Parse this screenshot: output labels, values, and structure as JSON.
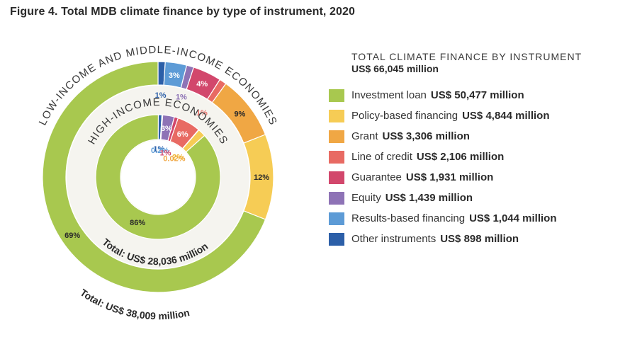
{
  "figure_title": "Figure 4.  Total MDB climate finance by type of instrument, 2020",
  "chart_data": {
    "type": "donut",
    "legend": {
      "heading": "TOTAL CLIMATE FINANCE BY INSTRUMENT",
      "total": "US$ 66,045 million",
      "items": [
        {
          "label": "Investment loan",
          "value": "US$ 50,477 million",
          "color": "#a8c84f"
        },
        {
          "label": "Policy-based financing",
          "value": "US$ 4,844 million",
          "color": "#f6cc55"
        },
        {
          "label": "Grant",
          "value": "US$ 3,306 million",
          "color": "#f0a744"
        },
        {
          "label": "Line of credit",
          "value": "US$ 2,106 million",
          "color": "#e86a63"
        },
        {
          "label": "Guarantee",
          "value": "US$ 1,931 million",
          "color": "#d2476c"
        },
        {
          "label": "Equity",
          "value": "US$ 1,439 million",
          "color": "#8e73b6"
        },
        {
          "label": "Results-based financing",
          "value": "US$ 1,044 million",
          "color": "#5d9bd6"
        },
        {
          "label": "Other instruments",
          "value": "US$ 898 million",
          "color": "#2c5fa8"
        }
      ]
    },
    "rings": [
      {
        "name": "LOW-INCOME AND MIDDLE-INCOME ECONOMIES",
        "total_label": "Total: US$ 38,009 million",
        "segments": [
          {
            "instrument": "Investment loan",
            "value": 69,
            "label": "69%",
            "label_color": "#2a2a2a"
          },
          {
            "instrument": "Policy-based financing",
            "value": 12,
            "label": "12%",
            "label_color": "#2a2a2a"
          },
          {
            "instrument": "Grant",
            "value": 9,
            "label": "9%",
            "label_color": "#2a2a2a"
          },
          {
            "instrument": "Line of credit",
            "value": 1,
            "label": "1%",
            "label_color": "#e86a63"
          },
          {
            "instrument": "Guarantee",
            "value": 4,
            "label": "4%",
            "label_color": "#ffffff"
          },
          {
            "instrument": "Equity",
            "value": 1,
            "label": "1%",
            "label_color": "#8e73b6"
          },
          {
            "instrument": "Results-based financing",
            "value": 3,
            "label": "3%",
            "label_color": "#ffffff"
          },
          {
            "instrument": "Other instruments",
            "value": 1,
            "label": "1%",
            "label_color": "#2c5fa8"
          }
        ]
      },
      {
        "name": "HIGH-INCOME ECONOMIES",
        "total_label": "Total: US$ 28,036 million",
        "segments": [
          {
            "instrument": "Investment loan",
            "value": 86,
            "label": "86%",
            "label_color": "#2a2a2a"
          },
          {
            "instrument": "Policy-based financing",
            "value": 2,
            "label": "2%",
            "label_color": "#f0b431"
          },
          {
            "instrument": "Grant",
            "value": 0.02,
            "label": "0.02%",
            "label_color": "#f0a744"
          },
          {
            "instrument": "Line of credit",
            "value": 6,
            "label": "6%",
            "label_color": "#ffffff"
          },
          {
            "instrument": "Guarantee",
            "value": 1,
            "label": "1%",
            "label_color": "#d2476c"
          },
          {
            "instrument": "Equity",
            "value": 3,
            "label": "3%",
            "label_color": "#ffffff"
          },
          {
            "instrument": "Results-based financing",
            "value": 0.2,
            "label": "0.2%",
            "label_color": "#5d9bd6"
          },
          {
            "instrument": "Other instruments",
            "value": 1,
            "label": "1%",
            "label_color": "#2c5fa8"
          }
        ]
      }
    ]
  }
}
